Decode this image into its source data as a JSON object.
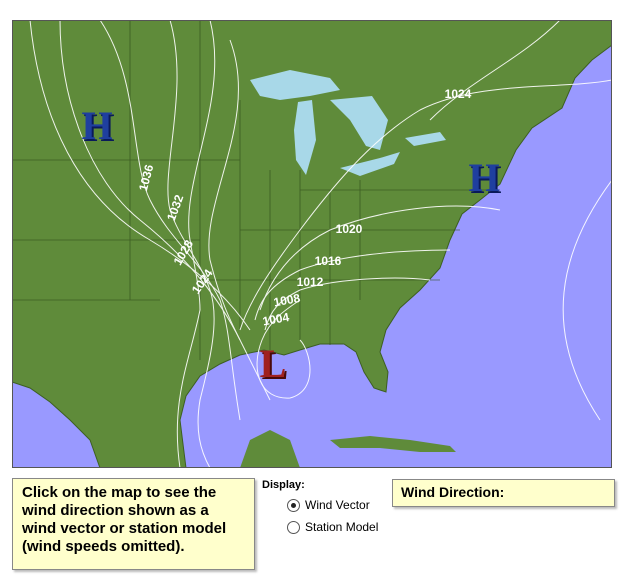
{
  "map": {
    "isobar_labels": [
      "1036",
      "1032",
      "1028",
      "1024",
      "1024",
      "1020",
      "1016",
      "1012",
      "1008",
      "1004"
    ],
    "pressure_centers": [
      "H",
      "H",
      "L"
    ]
  },
  "instructions": "Click on the map to see the wind direction shown as a wind vector or station model (wind speeds omitted).",
  "display": {
    "label": "Display:",
    "options": [
      "Wind Vector",
      "Station Model"
    ]
  },
  "wind_direction": {
    "label": "Wind Direction:"
  }
}
